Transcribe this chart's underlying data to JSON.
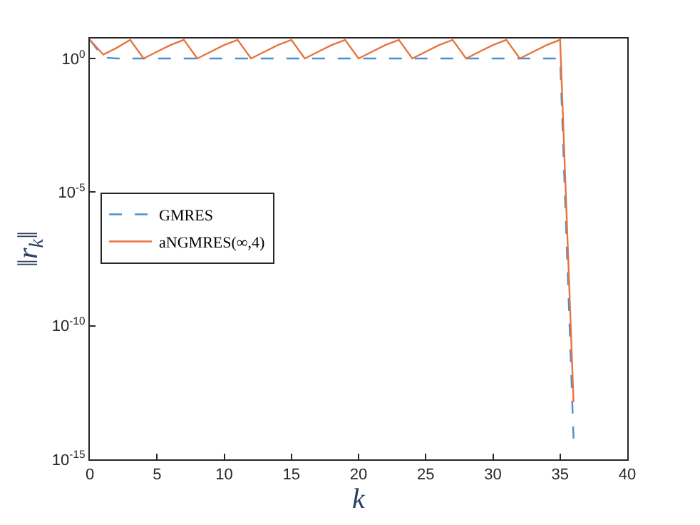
{
  "chart_data": {
    "type": "line",
    "xlabel": "k",
    "ylabel": "‖r$_{k}$‖",
    "log": "y",
    "x": [
      0,
      1,
      2,
      3,
      4,
      5,
      6,
      7,
      8,
      9,
      10,
      11,
      12,
      13,
      14,
      15,
      16,
      17,
      18,
      19,
      20,
      21,
      22,
      23,
      24,
      25,
      26,
      27,
      28,
      29,
      30,
      31,
      32,
      33,
      34,
      35,
      36
    ],
    "series": [
      {
        "name": "GMRES",
        "color": "#4a90d0",
        "line_style": "dashed",
        "values": [
          5,
          1.1,
          1,
          1,
          1,
          1,
          1,
          1,
          1,
          1,
          1,
          1,
          1,
          1,
          1,
          1,
          1,
          1,
          1,
          1,
          1,
          1,
          1,
          1,
          1,
          1,
          1,
          1,
          1,
          1,
          1,
          1,
          1,
          1,
          1,
          1,
          6e-15
        ]
      },
      {
        "name": "aNGMRES(∞,4)",
        "color": "#e8733f",
        "line_style": "solid",
        "values": [
          5,
          1.4,
          2.5,
          5,
          1,
          1.8,
          3.2,
          5,
          1,
          1.8,
          3.2,
          5,
          1,
          1.8,
          3.2,
          5,
          1,
          1.8,
          3.2,
          5,
          1,
          1.8,
          3.2,
          5,
          1,
          1.8,
          3.2,
          5,
          1,
          1.8,
          3.2,
          5,
          1,
          1.8,
          3.2,
          5,
          1.4e-13
        ]
      }
    ],
    "xlim": [
      0,
      40
    ],
    "xticks": [
      0,
      5,
      10,
      15,
      20,
      25,
      30,
      35,
      40
    ],
    "ylim": [
      1e-15,
      5.6
    ],
    "yticks": [
      {
        "value": 1,
        "label": "10$^{0}$"
      },
      {
        "value": 1e-05,
        "label": "10$^{-5}$"
      },
      {
        "value": 1e-10,
        "label": "10$^{-10}$"
      },
      {
        "value": 1e-15,
        "label": "10$^{-15}$"
      }
    ],
    "legend": "left"
  }
}
